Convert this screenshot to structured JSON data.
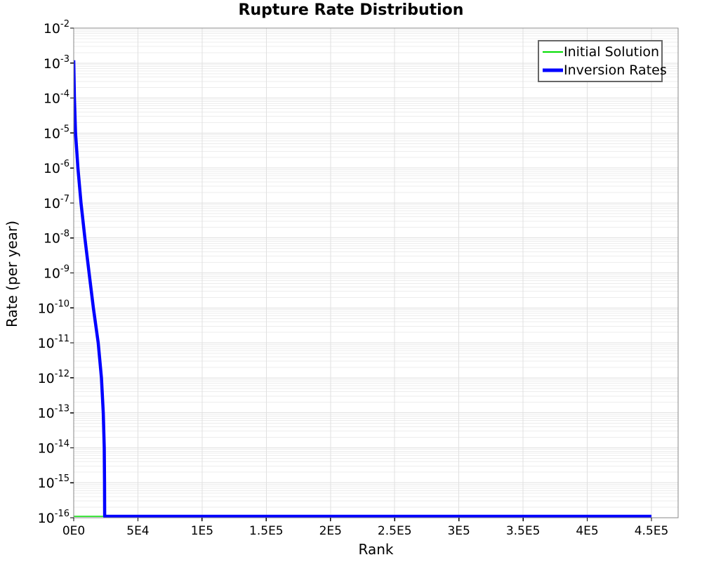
{
  "chart_data": {
    "type": "line",
    "title": "Rupture Rate Distribution",
    "xlabel": "Rank",
    "ylabel": "Rate (per year)",
    "x_axis": {
      "min": 0,
      "max": 470000,
      "ticks": [
        {
          "value": 0,
          "label": "0E0"
        },
        {
          "value": 50000,
          "label": "5E4"
        },
        {
          "value": 100000,
          "label": "1E5"
        },
        {
          "value": 150000,
          "label": "1.5E5"
        },
        {
          "value": 200000,
          "label": "2E5"
        },
        {
          "value": 250000,
          "label": "2.5E5"
        },
        {
          "value": 300000,
          "label": "3E5"
        },
        {
          "value": 350000,
          "label": "3.5E5"
        },
        {
          "value": 400000,
          "label": "4E5"
        },
        {
          "value": 450000,
          "label": "4.5E5"
        }
      ]
    },
    "y_axis": {
      "scale": "log",
      "label_base": "10",
      "max_exp": -2,
      "min_exp": -16,
      "tick_exponents": [
        -2,
        -3,
        -4,
        -5,
        -6,
        -7,
        -8,
        -9,
        -10,
        -11,
        -12,
        -13,
        -14,
        -15,
        -16
      ]
    },
    "grid": {
      "enabled": true,
      "major_color": "#e0e0e0",
      "minor_color": "#ededed"
    },
    "frame_color": "#888888",
    "legend": {
      "position": "top-right",
      "entries": [
        {
          "label": "Initial Solution",
          "color": "#00dd00",
          "stroke_width": 2
        },
        {
          "label": "Inversion Rates",
          "color": "#0000ff",
          "stroke_width": 5
        }
      ]
    },
    "series": [
      {
        "name": "Initial Solution",
        "color": "#00dd00",
        "stroke_width": 1.5,
        "points": [
          [
            0,
            1e-16
          ],
          [
            450000,
            1e-16
          ]
        ]
      },
      {
        "name": "Inversion Rates",
        "color": "#0000ff",
        "stroke_width": 4.5,
        "points": [
          [
            0,
            0.0012
          ],
          [
            550,
            0.0001
          ],
          [
            1400,
            1e-05
          ],
          [
            3300,
            1e-06
          ],
          [
            5700,
            1e-07
          ],
          [
            8700,
            1e-08
          ],
          [
            12000,
            1e-09
          ],
          [
            15300,
            1e-10
          ],
          [
            19100,
            1e-11
          ],
          [
            21600,
            1e-12
          ],
          [
            23000,
            1e-13
          ],
          [
            23800,
            1e-14
          ],
          [
            24000,
            1e-15
          ],
          [
            24100,
            1e-16
          ],
          [
            450000,
            1e-16
          ]
        ]
      }
    ]
  }
}
